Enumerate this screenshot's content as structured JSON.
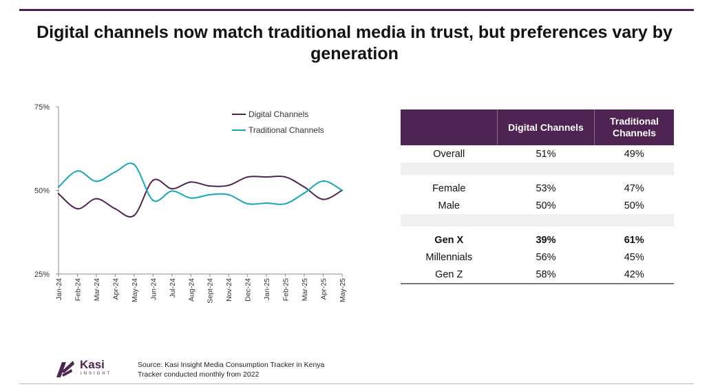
{
  "title": "Digital channels now match traditional media in trust, but preferences vary by generation",
  "colors": {
    "digital": "#4f2453",
    "traditional": "#17a6b4",
    "header_bg": "#4f2453"
  },
  "chart_data": {
    "type": "line",
    "categories": [
      "Jan-24",
      "Feb-24",
      "Mar-24",
      "Apr-24",
      "May-24",
      "Jun-24",
      "Jul-24",
      "Aug-24",
      "Sept-24",
      "Nov-24",
      "Dec-24",
      "Jan-25",
      "Feb-25",
      "Mar-25",
      "Apr-25",
      "May-25"
    ],
    "series": [
      {
        "name": "Digital Channels",
        "values": [
          49,
          44.5,
          47.5,
          44.5,
          42.5,
          53,
          50.5,
          52.5,
          51.3,
          51.5,
          54,
          54,
          54,
          51,
          47.3,
          50
        ]
      },
      {
        "name": "Traditional Channels",
        "values": [
          51,
          55.8,
          52.7,
          55.5,
          57.7,
          47,
          49.8,
          47.7,
          48.7,
          48.7,
          46,
          46.2,
          46,
          49.2,
          52.8,
          50
        ]
      }
    ],
    "ylim": [
      25,
      75
    ],
    "ytick_labels": [
      "75%",
      "50%",
      "25%"
    ],
    "legend": "top-right",
    "xlabel": "",
    "ylabel": ""
  },
  "table": {
    "headers": [
      "",
      "Digital Channels",
      "Traditional Channels"
    ],
    "rows": [
      {
        "label": "Overall",
        "digital": "51%",
        "traditional": "49%"
      },
      {
        "label": "Female",
        "digital": "53%",
        "traditional": "47%"
      },
      {
        "label": "Male",
        "digital": "50%",
        "traditional": "50%"
      },
      {
        "label": "Gen X",
        "digital": "39%",
        "traditional": "61%"
      },
      {
        "label": "Millennials",
        "digital": "56%",
        "traditional": "45%"
      },
      {
        "label": "Gen Z",
        "digital": "58%",
        "traditional": "42%"
      }
    ]
  },
  "logo": {
    "word": "Kasi",
    "sub": "INSIGHT"
  },
  "source": {
    "line1": "Source: Kasi Insight Media Consumption Tracker in  Kenya",
    "line2": "Tracker conducted monthly from 2022"
  }
}
